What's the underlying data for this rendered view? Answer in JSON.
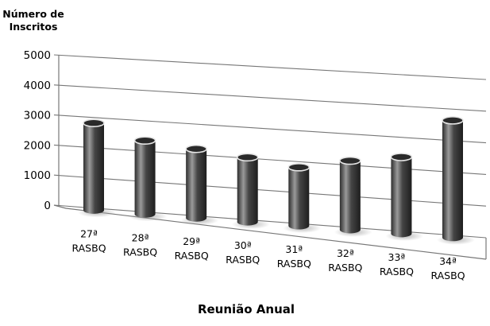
{
  "chart_data": {
    "type": "bar",
    "style": "3d-cylinder",
    "ylabel_lines": [
      "Número de",
      "Inscritos"
    ],
    "xlabel": "Reunião Anual",
    "categories": [
      [
        "27ª",
        "RASBQ"
      ],
      [
        "28ª",
        "RASBQ"
      ],
      [
        "29ª",
        "RASBQ"
      ],
      [
        "30ª",
        "RASBQ"
      ],
      [
        "31ª",
        "RASBQ"
      ],
      [
        "32ª",
        "RASBQ"
      ],
      [
        "33ª",
        "RASBQ"
      ],
      [
        "34ª",
        "RASBQ"
      ]
    ],
    "values": [
      2900,
      2450,
      2300,
      2150,
      1950,
      2300,
      2550,
      3900
    ],
    "ylim": [
      0,
      5000
    ],
    "yticks": [
      0,
      1000,
      2000,
      3000,
      4000,
      5000
    ],
    "grid": true,
    "colors": {
      "bar": "#404040",
      "bar_highlight": "#9a9a9a",
      "bar_top": "#e6e6e6",
      "grid": "#777777"
    }
  }
}
